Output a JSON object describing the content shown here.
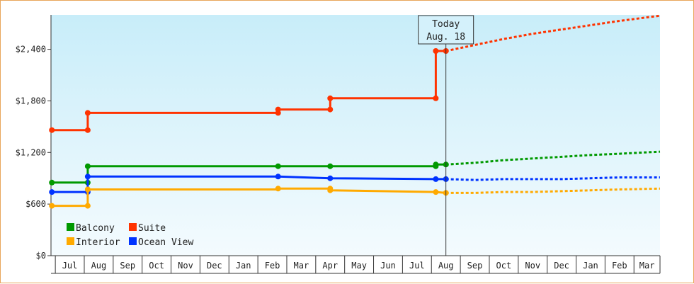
{
  "chart_data": {
    "type": "line",
    "y_ticks": [
      "$0",
      "$600",
      "$1,200",
      "$1,800",
      "$2,400"
    ],
    "y_tick_values": [
      0,
      600,
      1200,
      1800,
      2400
    ],
    "ylim": [
      0,
      2800
    ],
    "x_months": [
      "Jul",
      "Aug",
      "Sep",
      "Oct",
      "Nov",
      "Dec",
      "Jan",
      "Feb",
      "Mar",
      "Apr",
      "May",
      "Jun",
      "Jul",
      "Aug",
      "Sep",
      "Oct",
      "Nov",
      "Dec",
      "Jan",
      "Feb",
      "Mar"
    ],
    "xlim": [
      -0.65,
      20.4
    ],
    "today": {
      "line1": "Today",
      "line2": "Aug. 18",
      "x": 13
    },
    "legend": {
      "placement": "bottom-left"
    },
    "background": {
      "top": "#c8edf9",
      "bottom": "#f4fbfe"
    },
    "series": [
      {
        "name": "Suite",
        "color": "#ff3300",
        "points": [
          [
            -0.62,
            1460
          ],
          [
            0.62,
            1460
          ],
          [
            0.62,
            1660
          ],
          [
            7.2,
            1660
          ],
          [
            7.2,
            1700
          ],
          [
            9.0,
            1700
          ],
          [
            9.0,
            1830
          ],
          [
            12.65,
            1830
          ],
          [
            12.65,
            2380
          ],
          [
            13,
            2380
          ]
        ],
        "markers": [
          [
            -0.62,
            1460
          ],
          [
            0.62,
            1460
          ],
          [
            0.62,
            1660
          ],
          [
            7.2,
            1660
          ],
          [
            7.2,
            1700
          ],
          [
            9.0,
            1700
          ],
          [
            9.0,
            1830
          ],
          [
            12.65,
            1830
          ],
          [
            12.65,
            2380
          ],
          [
            13,
            2380
          ]
        ],
        "forecast": [
          [
            13,
            2380
          ],
          [
            14,
            2450
          ],
          [
            15,
            2520
          ],
          [
            16,
            2580
          ],
          [
            17,
            2630
          ],
          [
            18,
            2680
          ],
          [
            19,
            2730
          ],
          [
            20.4,
            2790
          ]
        ]
      },
      {
        "name": "Balcony",
        "color": "#009900",
        "points": [
          [
            -0.62,
            850
          ],
          [
            0.62,
            850
          ],
          [
            0.62,
            1040
          ],
          [
            7.2,
            1040
          ],
          [
            9.0,
            1040
          ],
          [
            12.65,
            1040
          ],
          [
            12.65,
            1060
          ],
          [
            13,
            1060
          ]
        ],
        "markers": [
          [
            -0.62,
            850
          ],
          [
            0.62,
            850
          ],
          [
            0.62,
            1040
          ],
          [
            7.2,
            1040
          ],
          [
            9.0,
            1040
          ],
          [
            12.65,
            1040
          ],
          [
            12.65,
            1060
          ],
          [
            13,
            1060
          ]
        ],
        "forecast": [
          [
            13,
            1060
          ],
          [
            14,
            1080
          ],
          [
            15,
            1110
          ],
          [
            16,
            1130
          ],
          [
            17,
            1150
          ],
          [
            18,
            1170
          ],
          [
            19,
            1185
          ],
          [
            20.4,
            1210
          ]
        ]
      },
      {
        "name": "Ocean View",
        "color": "#0033ff",
        "points": [
          [
            -0.62,
            740
          ],
          [
            0.62,
            740
          ],
          [
            0.62,
            920
          ],
          [
            7.2,
            920
          ],
          [
            7.2,
            920
          ],
          [
            9.0,
            900
          ],
          [
            12.65,
            890
          ],
          [
            13,
            890
          ]
        ],
        "markers": [
          [
            -0.62,
            740
          ],
          [
            0.62,
            740
          ],
          [
            0.62,
            920
          ],
          [
            7.2,
            920
          ],
          [
            9.0,
            900
          ],
          [
            12.65,
            890
          ],
          [
            13,
            890
          ]
        ],
        "forecast": [
          [
            13,
            890
          ],
          [
            14,
            880
          ],
          [
            15,
            890
          ],
          [
            16,
            890
          ],
          [
            17,
            890
          ],
          [
            18,
            900
          ],
          [
            19,
            910
          ],
          [
            20.4,
            910
          ]
        ]
      },
      {
        "name": "Interior",
        "color": "#ffaa00",
        "points": [
          [
            -0.62,
            580
          ],
          [
            0.62,
            580
          ],
          [
            0.62,
            770
          ],
          [
            7.2,
            770
          ],
          [
            7.2,
            780
          ],
          [
            9.0,
            780
          ],
          [
            9.0,
            760
          ],
          [
            12.65,
            740
          ],
          [
            13,
            730
          ]
        ],
        "markers": [
          [
            -0.62,
            580
          ],
          [
            0.62,
            580
          ],
          [
            0.62,
            770
          ],
          [
            7.2,
            780
          ],
          [
            9.0,
            780
          ],
          [
            9.0,
            760
          ],
          [
            12.65,
            740
          ],
          [
            13,
            730
          ]
        ],
        "forecast": [
          [
            13,
            730
          ],
          [
            14,
            730
          ],
          [
            15,
            740
          ],
          [
            16,
            740
          ],
          [
            17,
            750
          ],
          [
            18,
            760
          ],
          [
            19,
            770
          ],
          [
            20.4,
            780
          ]
        ]
      }
    ]
  }
}
